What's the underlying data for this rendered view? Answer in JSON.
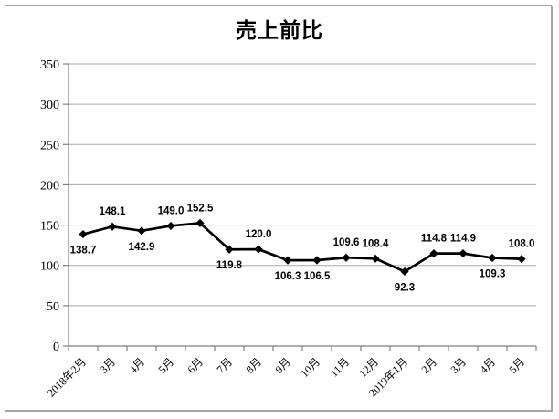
{
  "chart_data": {
    "type": "line",
    "title": "売上前比",
    "categories": [
      "2018年2月",
      "3月",
      "4月",
      "5月",
      "6月",
      "7月",
      "8月",
      "9月",
      "10月",
      "11月",
      "12月",
      "2019年1月",
      "2月",
      "3月",
      "4月",
      "5月"
    ],
    "series": [
      {
        "values": [
          138.7,
          148.1,
          142.9,
          149.0,
          152.5,
          119.8,
          120.0,
          106.3,
          106.5,
          109.6,
          108.4,
          92.3,
          114.8,
          114.9,
          109.3,
          108.0
        ]
      }
    ],
    "data_labels": [
      "138.7",
      "148.1",
      "142.9",
      "149.0",
      "152.5",
      "119.8",
      "120.0",
      "106.3",
      "106.5",
      "109.6",
      "108.4",
      "92.3",
      "114.8",
      "114.9",
      "109.3",
      "108.0"
    ],
    "label_positions": [
      "below",
      "above",
      "below",
      "above",
      "above",
      "below",
      "above",
      "below",
      "below",
      "above",
      "above",
      "below",
      "above",
      "above",
      "below",
      "above"
    ],
    "yticks": [
      0,
      50,
      100,
      150,
      200,
      250,
      300,
      350
    ],
    "ytick_labels": [
      "0",
      "50",
      "100",
      "150",
      "200",
      "250",
      "300",
      "350"
    ],
    "ylim": [
      0,
      350
    ],
    "grid": true,
    "legend": "none",
    "marker": "diamond",
    "x_label_rotation_deg": -45,
    "colors": {
      "line": "#000000",
      "marker": "#000000",
      "grid": "#a9a9a9",
      "axis": "#808080",
      "text": "#000000",
      "frame_border": "#a6a6a6",
      "background": "#ffffff"
    }
  }
}
